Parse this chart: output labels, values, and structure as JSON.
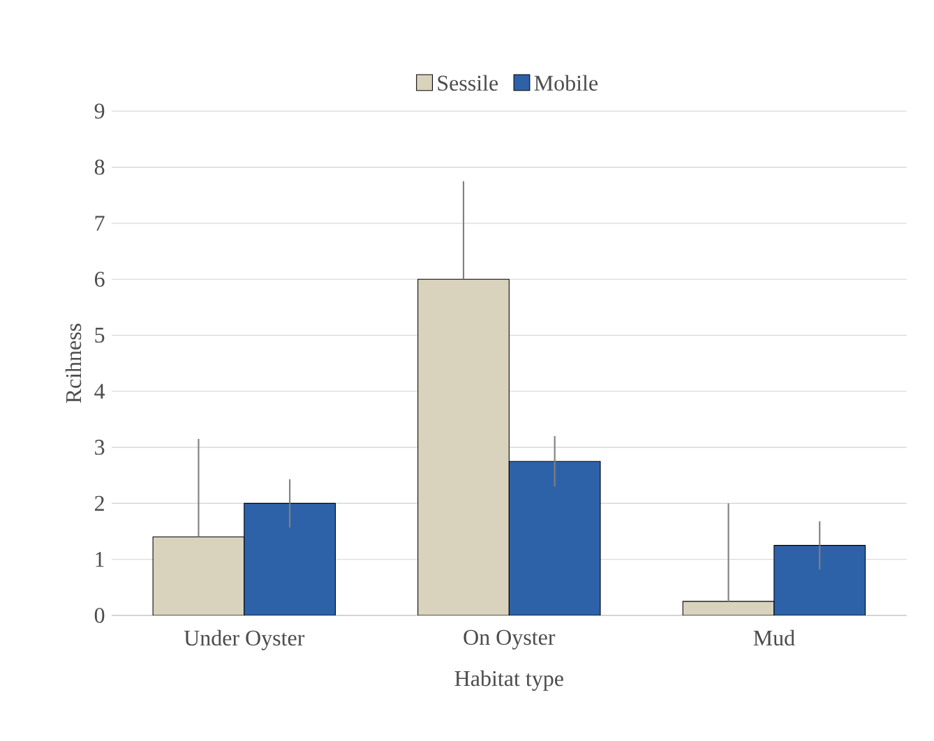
{
  "chart_data": {
    "type": "bar",
    "xlabel": "Habitat type",
    "ylabel": "Rcihness",
    "categories": [
      "Under Oyster",
      "On Oyster",
      "Mud"
    ],
    "series": [
      {
        "name": "Sessile",
        "color": "#d9d3bd",
        "values": [
          1.4,
          6.0,
          0.25
        ],
        "errors": [
          [
            1.4,
            3.15
          ],
          [
            6.0,
            7.75
          ],
          [
            0.25,
            2.0
          ]
        ]
      },
      {
        "name": "Mobile",
        "color": "#2e62a8",
        "values": [
          2.0,
          2.75,
          1.25
        ],
        "errors": [
          0.43,
          0.45,
          0.43
        ]
      }
    ],
    "ylim": [
      0,
      9
    ],
    "yticks": [
      0,
      1,
      2,
      3,
      4,
      5,
      6,
      7,
      8,
      9
    ],
    "grid": "y",
    "legend": "top"
  }
}
